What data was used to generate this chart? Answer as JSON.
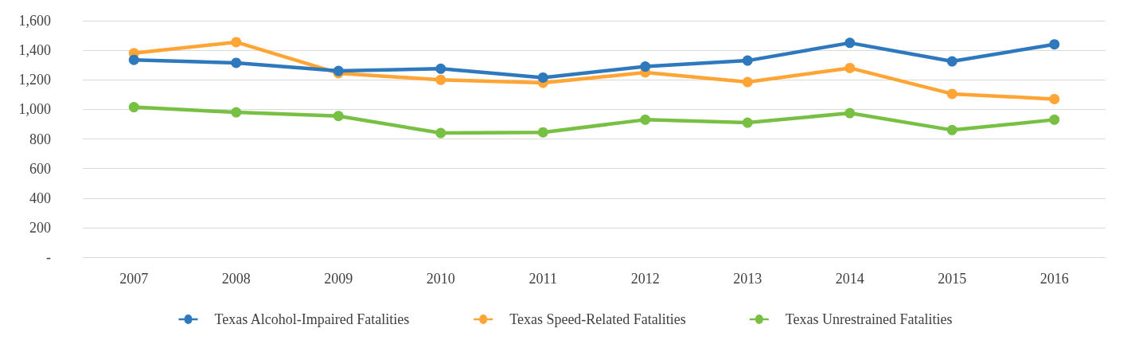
{
  "chart_data": {
    "type": "line",
    "categories": [
      "2007",
      "2008",
      "2009",
      "2010",
      "2011",
      "2012",
      "2013",
      "2014",
      "2015",
      "2016"
    ],
    "series": [
      {
        "name": "Texas Alcohol-Impaired Fatalities",
        "color": "#2e78bd",
        "values": [
          1335,
          1315,
          1260,
          1275,
          1215,
          1290,
          1330,
          1450,
          1325,
          1440
        ]
      },
      {
        "name": "Texas Speed-Related Fatalities",
        "color": "#ffa535",
        "values": [
          1380,
          1455,
          1245,
          1200,
          1180,
          1250,
          1185,
          1280,
          1105,
          1070
        ]
      },
      {
        "name": "Texas Unrestrained Fatalities",
        "color": "#78c043",
        "values": [
          1015,
          980,
          955,
          840,
          845,
          930,
          910,
          975,
          860,
          930
        ]
      }
    ],
    "ylim": [
      0,
      1600
    ],
    "yticks": [
      {
        "value": 0,
        "label": "-"
      },
      {
        "value": 200,
        "label": "200"
      },
      {
        "value": 400,
        "label": "400"
      },
      {
        "value": 600,
        "label": "600"
      },
      {
        "value": 800,
        "label": "800"
      },
      {
        "value": 1000,
        "label": "1,000"
      },
      {
        "value": 1200,
        "label": "1,200"
      },
      {
        "value": 1400,
        "label": "1,400"
      },
      {
        "value": 1600,
        "label": "1,600"
      }
    ],
    "grid": "y",
    "legend": "bottom",
    "marker": "circle",
    "line_style": "solid"
  }
}
